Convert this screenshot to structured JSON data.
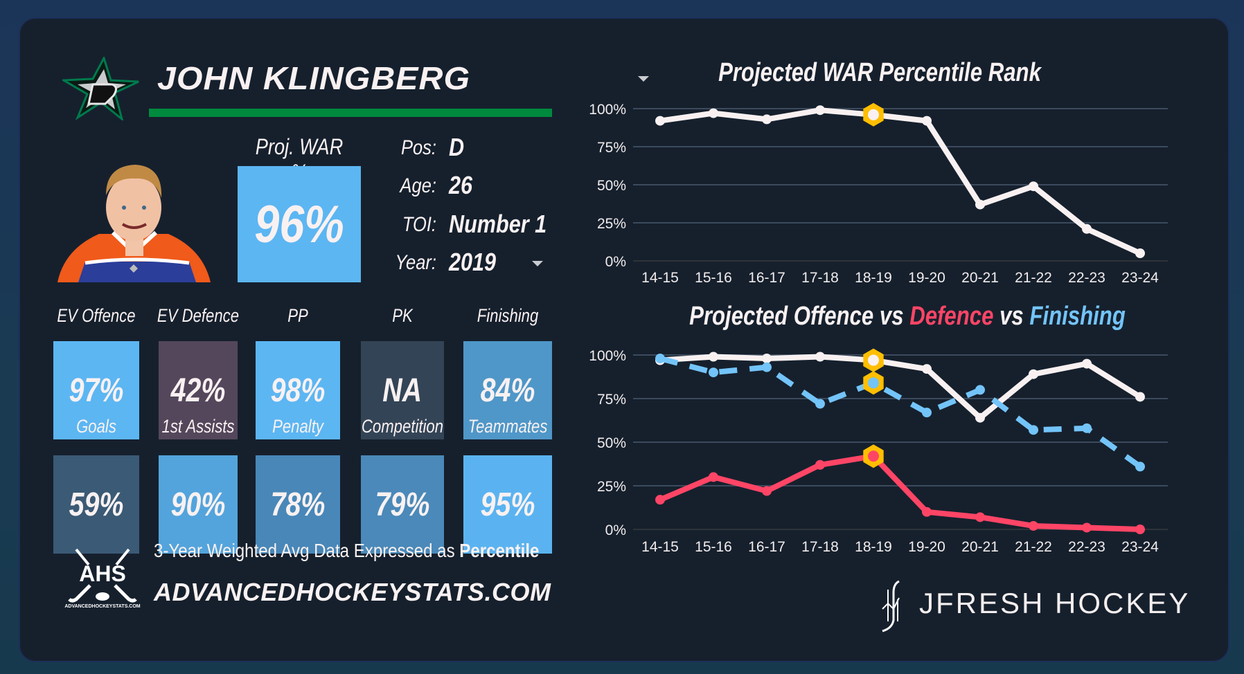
{
  "player": {
    "name": "JOHN KLINGBERG",
    "team_logo": "dallas-stars-logo",
    "photo": "player-headshot"
  },
  "projection": {
    "label": "Proj. WAR %",
    "value": "96%",
    "color": "#5cb6f2"
  },
  "info": {
    "pos_label": "Pos:",
    "pos_value": "D",
    "age_label": "Age:",
    "age_value": "26",
    "toi_label": "TOI:",
    "toi_value": "Number 1",
    "year_label": "Year:",
    "year_value": "2019"
  },
  "stats_row1": [
    {
      "label": "EV Offence",
      "value": "97%",
      "color": "#5cb6f2"
    },
    {
      "label": "EV Defence",
      "value": "42%",
      "color": "#54475b"
    },
    {
      "label": "PP",
      "value": "98%",
      "color": "#5cb6f2"
    },
    {
      "label": "PK",
      "value": "NA",
      "color": "#334456"
    },
    {
      "label": "Finishing",
      "value": "84%",
      "color": "#4f97c8"
    }
  ],
  "stats_row2": [
    {
      "label": "Goals",
      "value": "59%",
      "color": "#3a5a76"
    },
    {
      "label": "1st Assists",
      "value": "90%",
      "color": "#53a4dc"
    },
    {
      "label": "Penalty",
      "value": "78%",
      "color": "#4887b8"
    },
    {
      "label": "Competition",
      "value": "79%",
      "color": "#4a89b9"
    },
    {
      "label": "Teammates",
      "value": "95%",
      "color": "#5ab3f0"
    }
  ],
  "footer": {
    "note_prefix": "3-Year Weighted Avg Data Expressed as ",
    "note_bold": "Percentile",
    "url": "ADVANCEDHOCKEYSTATS.COM",
    "ahs_logo_text": "AHS",
    "ahs_logo_sub": "ADVANCEDHOCKEYSTATS.COM",
    "brand": "JFRESH HOCKEY"
  },
  "colors": {
    "offence": "#f9f1f1",
    "defence": "#ff4566",
    "finishing": "#73c4f9",
    "highlight": "#ffbe00",
    "grid": "#3b4a5c"
  },
  "chart_data": [
    {
      "type": "line",
      "title": "Projected WAR Percentile Rank",
      "categories": [
        "14-15",
        "15-16",
        "16-17",
        "17-18",
        "18-19",
        "19-20",
        "20-21",
        "21-22",
        "22-23",
        "23-24"
      ],
      "yticks": [
        "0%",
        "25%",
        "50%",
        "75%",
        "100%"
      ],
      "ylim": [
        0,
        100
      ],
      "grid": true,
      "highlight_category": "18-19",
      "series": [
        {
          "name": "WAR",
          "values": [
            92,
            97,
            93,
            99,
            96,
            92,
            37,
            49,
            21,
            5
          ],
          "style": "solid",
          "color_key": "offence"
        }
      ]
    },
    {
      "type": "line",
      "title_parts": [
        {
          "text": "Projected Offence vs ",
          "color_key": "offence"
        },
        {
          "text": "Defence",
          "color_key": "defence"
        },
        {
          "text": " vs ",
          "color_key": "offence"
        },
        {
          "text": "Finishing",
          "color_key": "finishing"
        }
      ],
      "categories": [
        "14-15",
        "15-16",
        "16-17",
        "17-18",
        "18-19",
        "19-20",
        "20-21",
        "21-22",
        "22-23",
        "23-24"
      ],
      "yticks": [
        "0%",
        "25%",
        "50%",
        "75%",
        "100%"
      ],
      "ylim": [
        0,
        100
      ],
      "grid": true,
      "highlight_category": "18-19",
      "series": [
        {
          "name": "Offence",
          "values": [
            97,
            99,
            98,
            99,
            97,
            92,
            64,
            89,
            95,
            76
          ],
          "style": "solid",
          "color_key": "offence"
        },
        {
          "name": "Finishing",
          "values": [
            98,
            90,
            93,
            72,
            84,
            67,
            80,
            57,
            58,
            36
          ],
          "style": "dashed",
          "color_key": "finishing"
        },
        {
          "name": "Defence",
          "values": [
            17,
            30,
            22,
            37,
            42,
            10,
            7,
            2,
            1,
            0
          ],
          "style": "solid",
          "color_key": "defence"
        }
      ]
    }
  ]
}
